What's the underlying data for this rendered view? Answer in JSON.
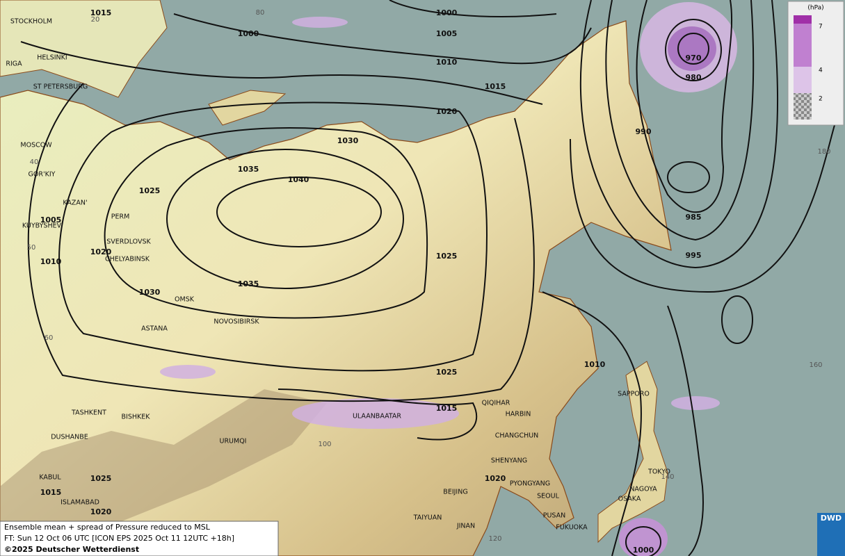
{
  "isobar_labels": [
    1015,
    1000,
    1000,
    1005,
    1010,
    1015,
    1020,
    1030,
    1035,
    1040,
    1025,
    1005,
    1020,
    1010,
    1030,
    1035,
    1025,
    970,
    980,
    990,
    985,
    995,
    1010,
    1025,
    1015,
    1020,
    1025,
    1015,
    1020,
    1000
  ],
  "cities": [
    "STOCKHOLM",
    "HELSINKI",
    "RIGA",
    "ST PETERSBURG",
    "MOSCOW",
    "GOR'KIY",
    "KAZAN'",
    "KUYBYSHEV",
    "PERM",
    "SVERDLOVSK",
    "CHELYABINSK",
    "OMSK",
    "NOVOSIBIRSK",
    "ASTANA",
    "TASHKENT",
    "BISHKEK",
    "DUSHANBE",
    "URUMQI",
    "ULAANBAATAR",
    "QIQIHAR",
    "HARBIN",
    "CHANGCHUN",
    "SHENYANG",
    "BEIJING",
    "PYONGYANG",
    "SEOUL",
    "TAIYUAN",
    "JINAN",
    "PUSAN",
    "FUKUOKA",
    "SAPPORO",
    "TOKYO",
    "NAGOYA",
    "OSAKA",
    "KABUL",
    "ISLAMABAD"
  ],
  "grid_labels": [
    80,
    20,
    40,
    50,
    60,
    100,
    180,
    160,
    120,
    140
  ],
  "legend": {
    "unit": "(hPa)",
    "levels": [
      7,
      4,
      2
    ]
  },
  "caption": {
    "line1": "Ensemble mean + spread of Pressure reduced to MSL",
    "line2": "FT: Sun 12 Oct 06 UTC [ICON EPS 2025 Oct 11 12UTC +18h]",
    "line3": "©2025 Deutscher Wetterdienst"
  },
  "logo": "DWD"
}
